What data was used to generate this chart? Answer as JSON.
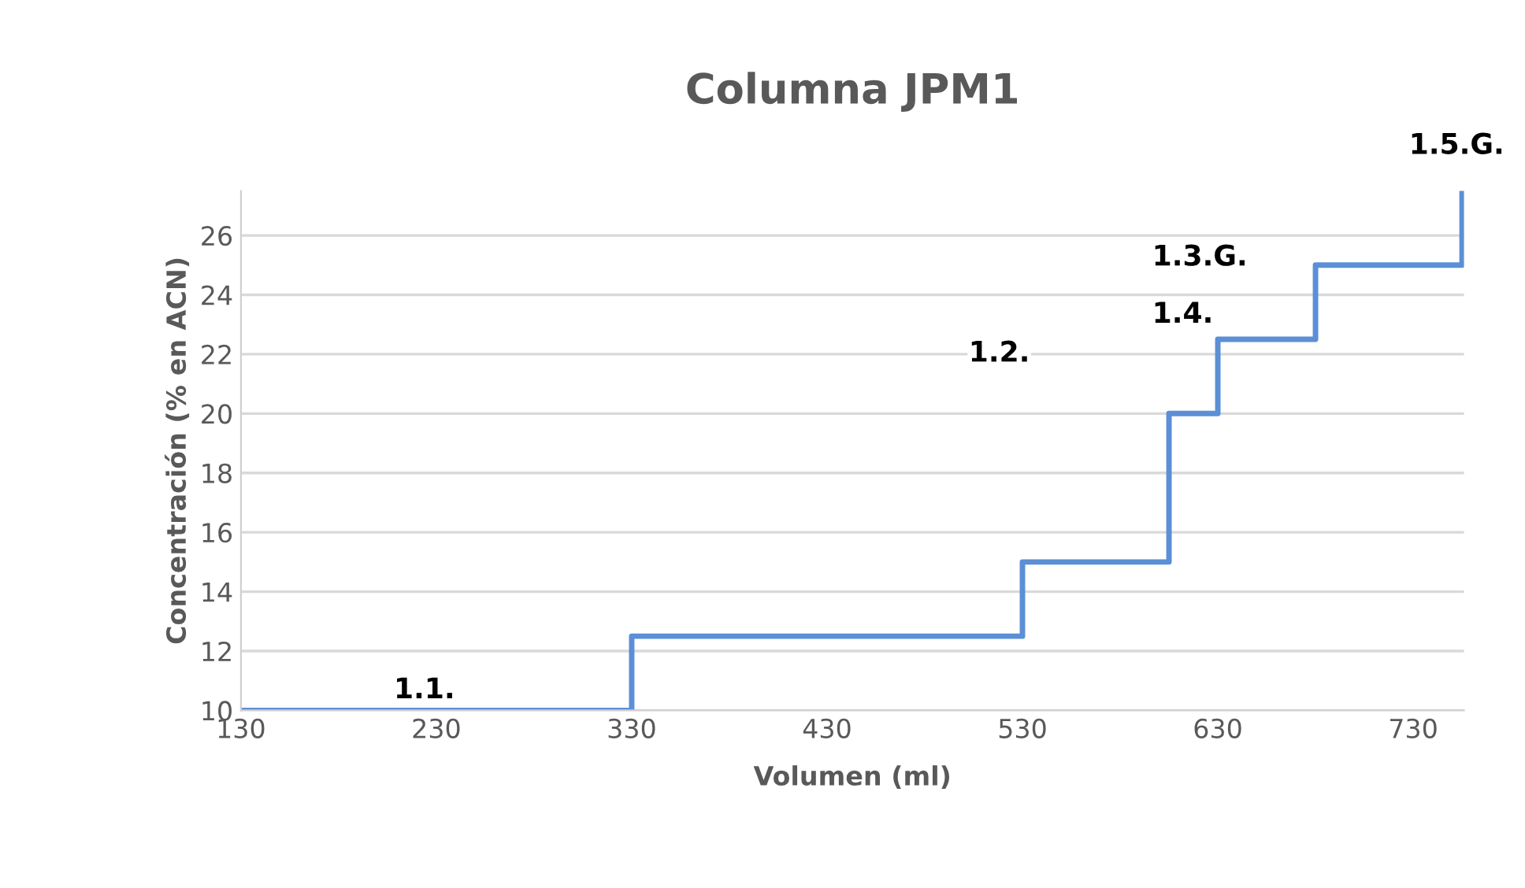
{
  "chart_data": {
    "type": "step",
    "title": "Columna JPM1",
    "xlabel": "Volumen (ml)",
    "ylabel": "Concentración (% en ACN)",
    "x": [
      130,
      330,
      530,
      605,
      630,
      680,
      755
    ],
    "series": [
      {
        "color": "#5b8fd6",
        "values": [
          10,
          12.5,
          15,
          20,
          22.5,
          25,
          27.5
        ]
      }
    ],
    "xlim": [
      130,
      756
    ],
    "xticks": [
      130,
      230,
      330,
      430,
      530,
      630,
      730
    ],
    "ylim": [
      10,
      27.5
    ],
    "yticks": [
      10,
      12,
      14,
      16,
      18,
      20,
      22,
      24,
      26
    ],
    "grid": "y",
    "legend": false,
    "annotations": [
      "1.1.",
      "1.2.",
      "1.3.G.",
      "1.4.",
      "1.5.G."
    ]
  }
}
